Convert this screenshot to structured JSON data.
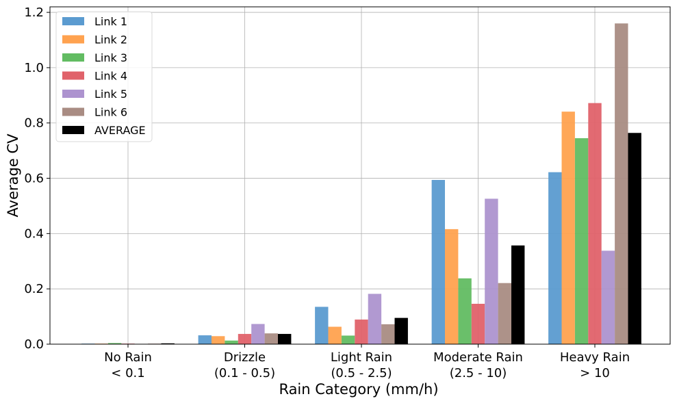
{
  "chart_data": {
    "type": "bar",
    "title": "",
    "xlabel": "Rain Category (mm/h)",
    "ylabel": "Average CV",
    "ylim": [
      0,
      1.22
    ],
    "yticks": [
      "0.0",
      "0.2",
      "0.4",
      "0.6",
      "0.8",
      "1.0",
      "1.2"
    ],
    "grid": true,
    "legend_position": "top-left",
    "categories": [
      [
        "No Rain",
        "< 0.1"
      ],
      [
        "Drizzle",
        "(0.1 - 0.5)"
      ],
      [
        "Light Rain",
        "(0.5 - 2.5)"
      ],
      [
        "Moderate Rain",
        "(2.5 - 10)"
      ],
      [
        "Heavy Rain",
        "> 10"
      ]
    ],
    "series": [
      {
        "name": "Link 1",
        "color": "#5b9bd0",
        "values": [
          0.002,
          0.032,
          0.135,
          0.594,
          0.622
        ]
      },
      {
        "name": "Link 2",
        "color": "#ffa24f",
        "values": [
          0.002,
          0.029,
          0.063,
          0.416,
          0.841
        ]
      },
      {
        "name": "Link 3",
        "color": "#62bc62",
        "values": [
          0.004,
          0.013,
          0.031,
          0.238,
          0.745
        ]
      },
      {
        "name": "Link 4",
        "color": "#e0626a",
        "values": [
          0.002,
          0.037,
          0.089,
          0.146,
          0.872
        ]
      },
      {
        "name": "Link 5",
        "color": "#ad93cf",
        "values": [
          0.001,
          0.073,
          0.182,
          0.526,
          0.338
        ]
      },
      {
        "name": "Link 6",
        "color": "#a98c83",
        "values": [
          0.002,
          0.039,
          0.072,
          0.221,
          1.16
        ]
      },
      {
        "name": "AVERAGE",
        "color": "#000000",
        "values": [
          0.003,
          0.037,
          0.095,
          0.357,
          0.764
        ]
      }
    ]
  }
}
